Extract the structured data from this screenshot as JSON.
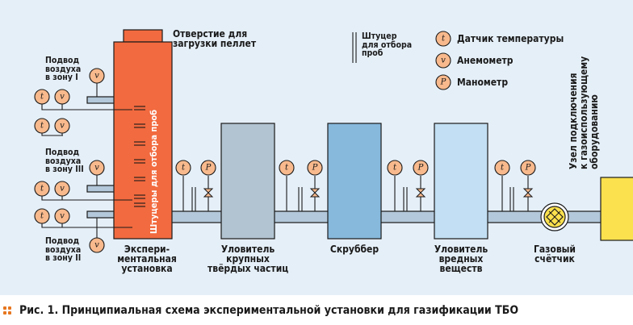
{
  "caption": {
    "fig": "Рис. 1.",
    "text": "Принципиальная схема экспериментальной установки для газификации ТБО"
  },
  "labels": {
    "pellet_line1": "Отверстие для",
    "pellet_line2": "загрузки пеллет",
    "fitting_line1": "Штуцер",
    "fitting_line2": "для отбора",
    "fitting_line3": "проб",
    "legend_temp": "Датчик температуры",
    "legend_anem": "Анемометр",
    "legend_mano": "Манометр",
    "zone1_line1": "Подвод",
    "zone1_line2": "воздуха",
    "zone1_line3": "в зону I",
    "zone3_line1": "Подвод",
    "zone3_line2": "воздуха",
    "zone3_line3": "в зону III",
    "zone2_line1": "Подвод",
    "zone2_line2": "воздуха",
    "zone2_line3": "в зону II",
    "reactor_vertical": "Штуцеры для отбора проб",
    "reactor_line1": "Экспери-",
    "reactor_line2": "ментальная",
    "reactor_line3": "установка",
    "solids_line1": "Уловитель",
    "solids_line2": "крупных",
    "solids_line3": "твёрдых частиц",
    "scrubber": "Скруббер",
    "harmful_line1": "Уловитель",
    "harmful_line2": "вредных",
    "harmful_line3": "веществ",
    "meter_line1": "Газовый",
    "meter_line2": "счётчик",
    "connect_line1": "Узел подключения",
    "connect_line2": "к газоиспользующему",
    "connect_line3": "оборудованию"
  },
  "symbols": {
    "temperature": "t",
    "anemometer": "v",
    "manometer": "P"
  },
  "colors": {
    "background": "#e5eff8",
    "reactor": "#f26a3f",
    "solids_catcher": "#b2c4d1",
    "scrubber": "#86b9dc",
    "harmful_catcher": "#c2dff3",
    "connection": "#fce14e",
    "pipe": "#b3c8da",
    "sensor": "#f8b98c",
    "accent": "#e6761f"
  }
}
